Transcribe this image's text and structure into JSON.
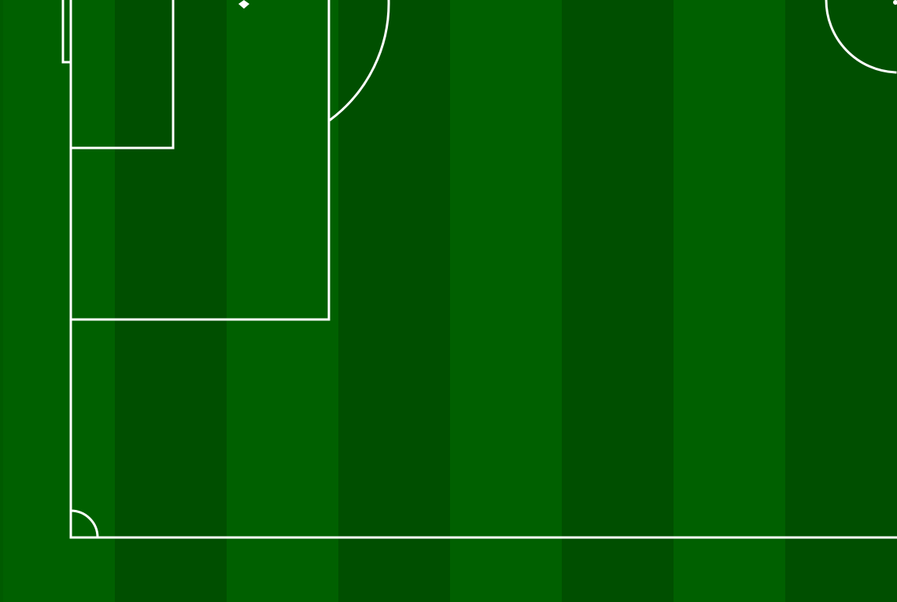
{
  "scene": {
    "type": "football-pitch-corner-view",
    "colors": {
      "grass_light": "#006000",
      "grass_dark": "#004f00",
      "grass_outer_left": "#005a00",
      "line": "#ffffff"
    },
    "visible_markings": [
      "goal",
      "goal-area",
      "penalty-area",
      "penalty-spot",
      "penalty-arc",
      "center-circle",
      "corner-arc",
      "goal-line",
      "touchline"
    ]
  }
}
